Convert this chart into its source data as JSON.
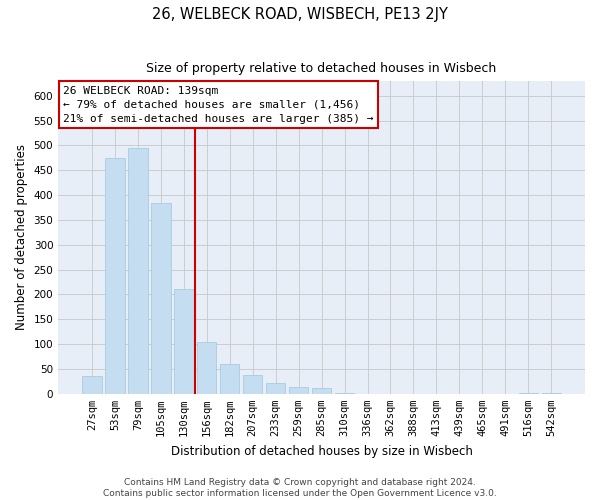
{
  "title": "26, WELBECK ROAD, WISBECH, PE13 2JY",
  "subtitle": "Size of property relative to detached houses in Wisbech",
  "xlabel": "Distribution of detached houses by size in Wisbech",
  "ylabel": "Number of detached properties",
  "bar_labels": [
    "27sqm",
    "53sqm",
    "79sqm",
    "105sqm",
    "130sqm",
    "156sqm",
    "182sqm",
    "207sqm",
    "233sqm",
    "259sqm",
    "285sqm",
    "310sqm",
    "336sqm",
    "362sqm",
    "388sqm",
    "413sqm",
    "439sqm",
    "465sqm",
    "491sqm",
    "516sqm",
    "542sqm"
  ],
  "bar_values": [
    35,
    475,
    495,
    385,
    210,
    105,
    60,
    38,
    22,
    13,
    11,
    1,
    0,
    0,
    0,
    0,
    0,
    0,
    0,
    1,
    1
  ],
  "bar_color": "#c5ddf0",
  "bar_edge_color": "#a8cce0",
  "vline_x": 4.5,
  "vline_color": "#cc0000",
  "annotation_title": "26 WELBECK ROAD: 139sqm",
  "annotation_line1": "← 79% of detached houses are smaller (1,456)",
  "annotation_line2": "21% of semi-detached houses are larger (385) →",
  "annotation_box_color": "white",
  "annotation_box_edge": "#cc0000",
  "ylim": [
    0,
    630
  ],
  "yticks": [
    0,
    50,
    100,
    150,
    200,
    250,
    300,
    350,
    400,
    450,
    500,
    550,
    600
  ],
  "grid_color": "#cccccc",
  "bg_color": "#e8eef8",
  "footer_line1": "Contains HM Land Registry data © Crown copyright and database right 2024.",
  "footer_line2": "Contains public sector information licensed under the Open Government Licence v3.0.",
  "title_fontsize": 10.5,
  "subtitle_fontsize": 9,
  "axis_label_fontsize": 8.5,
  "tick_fontsize": 7.5,
  "annotation_title_fontsize": 8.5,
  "annotation_text_fontsize": 8,
  "footer_fontsize": 6.5
}
